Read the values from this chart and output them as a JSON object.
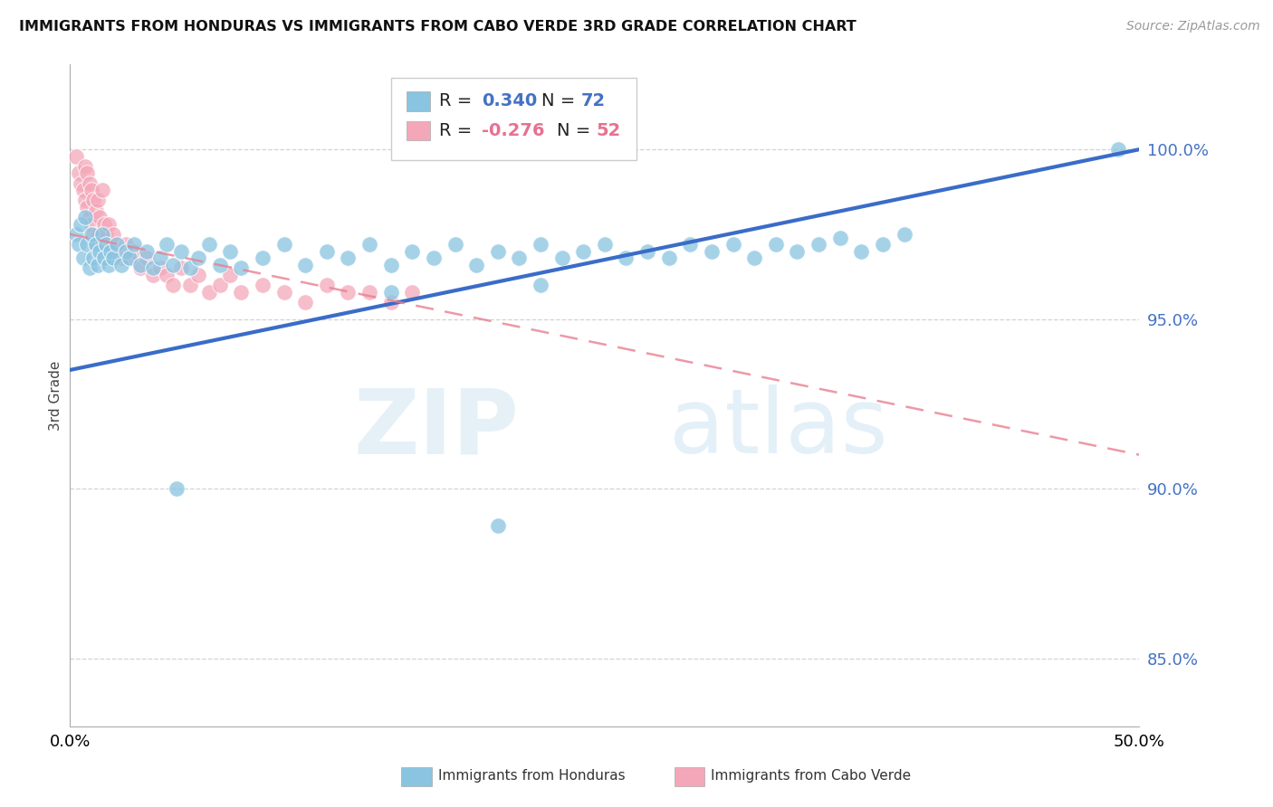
{
  "title": "IMMIGRANTS FROM HONDURAS VS IMMIGRANTS FROM CABO VERDE 3RD GRADE CORRELATION CHART",
  "source": "Source: ZipAtlas.com",
  "ylabel": "3rd Grade",
  "ytick_labels": [
    "85.0%",
    "90.0%",
    "95.0%",
    "100.0%"
  ],
  "ytick_values": [
    0.85,
    0.9,
    0.95,
    1.0
  ],
  "xlim": [
    0.0,
    0.5
  ],
  "ylim": [
    0.83,
    1.025
  ],
  "R1": 0.34,
  "N1": 72,
  "R2": -0.276,
  "N2": 52,
  "color_honduras": "#89C4E1",
  "color_caboverde": "#F4A7B9",
  "line_color_honduras": "#3A6CC8",
  "line_color_caboverde": "#E88090",
  "watermark_zip": "ZIP",
  "watermark_atlas": "atlas",
  "background_color": "#ffffff",
  "scatter_honduras": [
    [
      0.003,
      0.975
    ],
    [
      0.004,
      0.972
    ],
    [
      0.005,
      0.978
    ],
    [
      0.006,
      0.968
    ],
    [
      0.007,
      0.98
    ],
    [
      0.008,
      0.972
    ],
    [
      0.009,
      0.965
    ],
    [
      0.01,
      0.975
    ],
    [
      0.011,
      0.968
    ],
    [
      0.012,
      0.972
    ],
    [
      0.013,
      0.966
    ],
    [
      0.014,
      0.97
    ],
    [
      0.015,
      0.975
    ],
    [
      0.016,
      0.968
    ],
    [
      0.017,
      0.972
    ],
    [
      0.018,
      0.966
    ],
    [
      0.019,
      0.97
    ],
    [
      0.02,
      0.968
    ],
    [
      0.022,
      0.972
    ],
    [
      0.024,
      0.966
    ],
    [
      0.026,
      0.97
    ],
    [
      0.028,
      0.968
    ],
    [
      0.03,
      0.972
    ],
    [
      0.033,
      0.966
    ],
    [
      0.036,
      0.97
    ],
    [
      0.039,
      0.965
    ],
    [
      0.042,
      0.968
    ],
    [
      0.045,
      0.972
    ],
    [
      0.048,
      0.966
    ],
    [
      0.052,
      0.97
    ],
    [
      0.056,
      0.965
    ],
    [
      0.06,
      0.968
    ],
    [
      0.065,
      0.972
    ],
    [
      0.07,
      0.966
    ],
    [
      0.075,
      0.97
    ],
    [
      0.08,
      0.965
    ],
    [
      0.09,
      0.968
    ],
    [
      0.1,
      0.972
    ],
    [
      0.11,
      0.966
    ],
    [
      0.12,
      0.97
    ],
    [
      0.13,
      0.968
    ],
    [
      0.14,
      0.972
    ],
    [
      0.15,
      0.966
    ],
    [
      0.16,
      0.97
    ],
    [
      0.17,
      0.968
    ],
    [
      0.18,
      0.972
    ],
    [
      0.19,
      0.966
    ],
    [
      0.2,
      0.97
    ],
    [
      0.21,
      0.968
    ],
    [
      0.22,
      0.972
    ],
    [
      0.23,
      0.968
    ],
    [
      0.24,
      0.97
    ],
    [
      0.25,
      0.972
    ],
    [
      0.26,
      0.968
    ],
    [
      0.27,
      0.97
    ],
    [
      0.28,
      0.968
    ],
    [
      0.29,
      0.972
    ],
    [
      0.3,
      0.97
    ],
    [
      0.31,
      0.972
    ],
    [
      0.32,
      0.968
    ],
    [
      0.33,
      0.972
    ],
    [
      0.34,
      0.97
    ],
    [
      0.35,
      0.972
    ],
    [
      0.36,
      0.974
    ],
    [
      0.37,
      0.97
    ],
    [
      0.38,
      0.972
    ],
    [
      0.39,
      0.975
    ],
    [
      0.05,
      0.9
    ],
    [
      0.2,
      0.889
    ],
    [
      0.15,
      0.958
    ],
    [
      0.22,
      0.96
    ],
    [
      0.49,
      1.0
    ]
  ],
  "scatter_caboverde": [
    [
      0.003,
      0.998
    ],
    [
      0.004,
      0.993
    ],
    [
      0.005,
      0.99
    ],
    [
      0.006,
      0.988
    ],
    [
      0.007,
      0.995
    ],
    [
      0.007,
      0.985
    ],
    [
      0.008,
      0.993
    ],
    [
      0.008,
      0.983
    ],
    [
      0.009,
      0.99
    ],
    [
      0.009,
      0.98
    ],
    [
      0.01,
      0.988
    ],
    [
      0.01,
      0.978
    ],
    [
      0.011,
      0.985
    ],
    [
      0.011,
      0.975
    ],
    [
      0.012,
      0.982
    ],
    [
      0.012,
      0.972
    ],
    [
      0.013,
      0.985
    ],
    [
      0.013,
      0.975
    ],
    [
      0.014,
      0.98
    ],
    [
      0.015,
      0.988
    ],
    [
      0.015,
      0.975
    ],
    [
      0.016,
      0.978
    ],
    [
      0.017,
      0.975
    ],
    [
      0.018,
      0.978
    ],
    [
      0.019,
      0.972
    ],
    [
      0.02,
      0.975
    ],
    [
      0.022,
      0.97
    ],
    [
      0.024,
      0.968
    ],
    [
      0.026,
      0.972
    ],
    [
      0.028,
      0.968
    ],
    [
      0.03,
      0.97
    ],
    [
      0.033,
      0.965
    ],
    [
      0.036,
      0.968
    ],
    [
      0.039,
      0.963
    ],
    [
      0.042,
      0.965
    ],
    [
      0.045,
      0.963
    ],
    [
      0.048,
      0.96
    ],
    [
      0.052,
      0.965
    ],
    [
      0.056,
      0.96
    ],
    [
      0.06,
      0.963
    ],
    [
      0.065,
      0.958
    ],
    [
      0.07,
      0.96
    ],
    [
      0.075,
      0.963
    ],
    [
      0.08,
      0.958
    ],
    [
      0.09,
      0.96
    ],
    [
      0.1,
      0.958
    ],
    [
      0.11,
      0.955
    ],
    [
      0.12,
      0.96
    ],
    [
      0.13,
      0.958
    ],
    [
      0.14,
      0.958
    ],
    [
      0.15,
      0.955
    ],
    [
      0.16,
      0.958
    ]
  ]
}
